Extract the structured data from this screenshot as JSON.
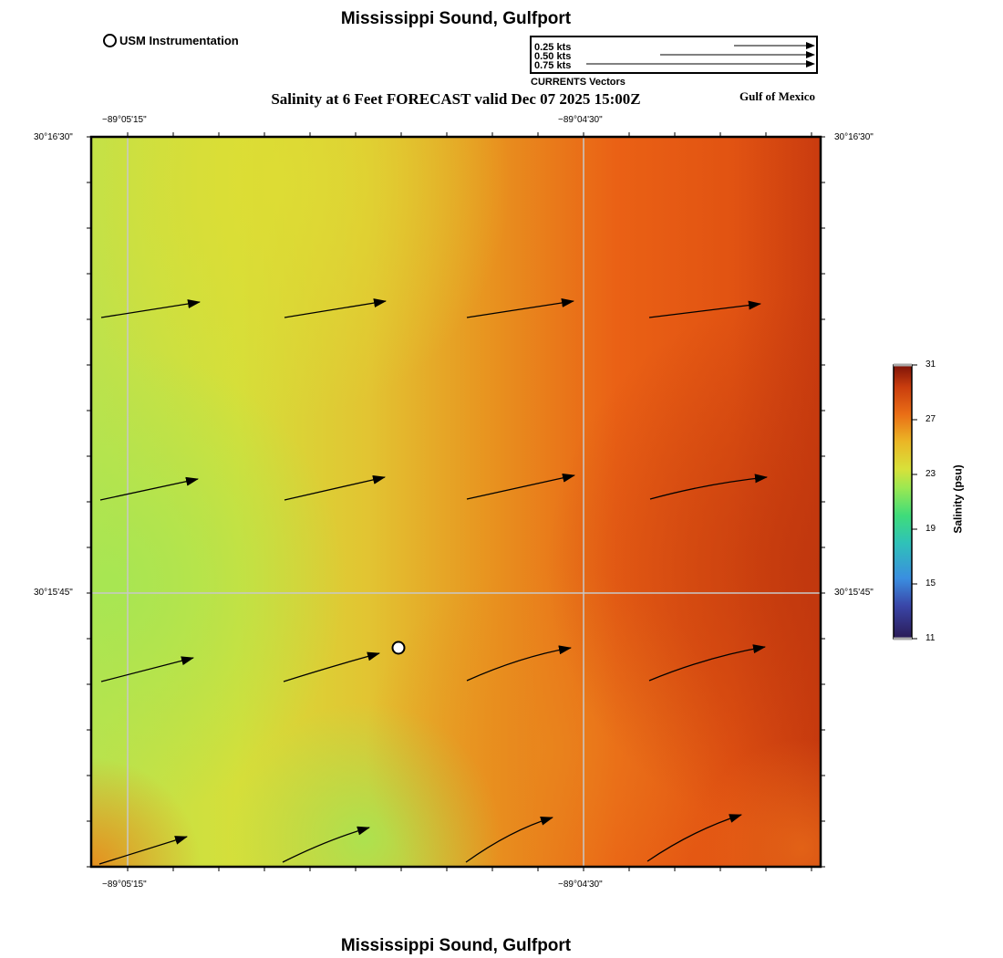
{
  "header": {
    "title": "Mississippi Sound, Gulfport",
    "subtitle": "Salinity at 6 Feet FORECAST valid Dec 07 2025 15:00Z",
    "region": "Gulf of Mexico"
  },
  "footer": {
    "title": "Mississippi Sound, Gulfport"
  },
  "station_legend": {
    "label": "USM Instrumentation"
  },
  "vector_legend": {
    "entries": [
      "0.25 kts",
      "0.50 kts",
      "0.75 kts"
    ],
    "caption": "CURRENTS Vectors"
  },
  "map": {
    "lon_labels": [
      "−89°05'15\"",
      "−89°04'30\""
    ],
    "lat_labels": [
      "30°16'30\"",
      "30°15'45\""
    ],
    "variable": "Salinity",
    "units": "psu"
  },
  "colorbar": {
    "title": "Salinity (psu)",
    "ticks": [
      "31",
      "27",
      "23",
      "19",
      "15",
      "11"
    ],
    "min": 11,
    "max": 31
  },
  "colors": {
    "frame": "#000000",
    "grid": "#c8c8c8",
    "low_salinity": "#a6e653",
    "high_salinity": "#c4380e"
  }
}
